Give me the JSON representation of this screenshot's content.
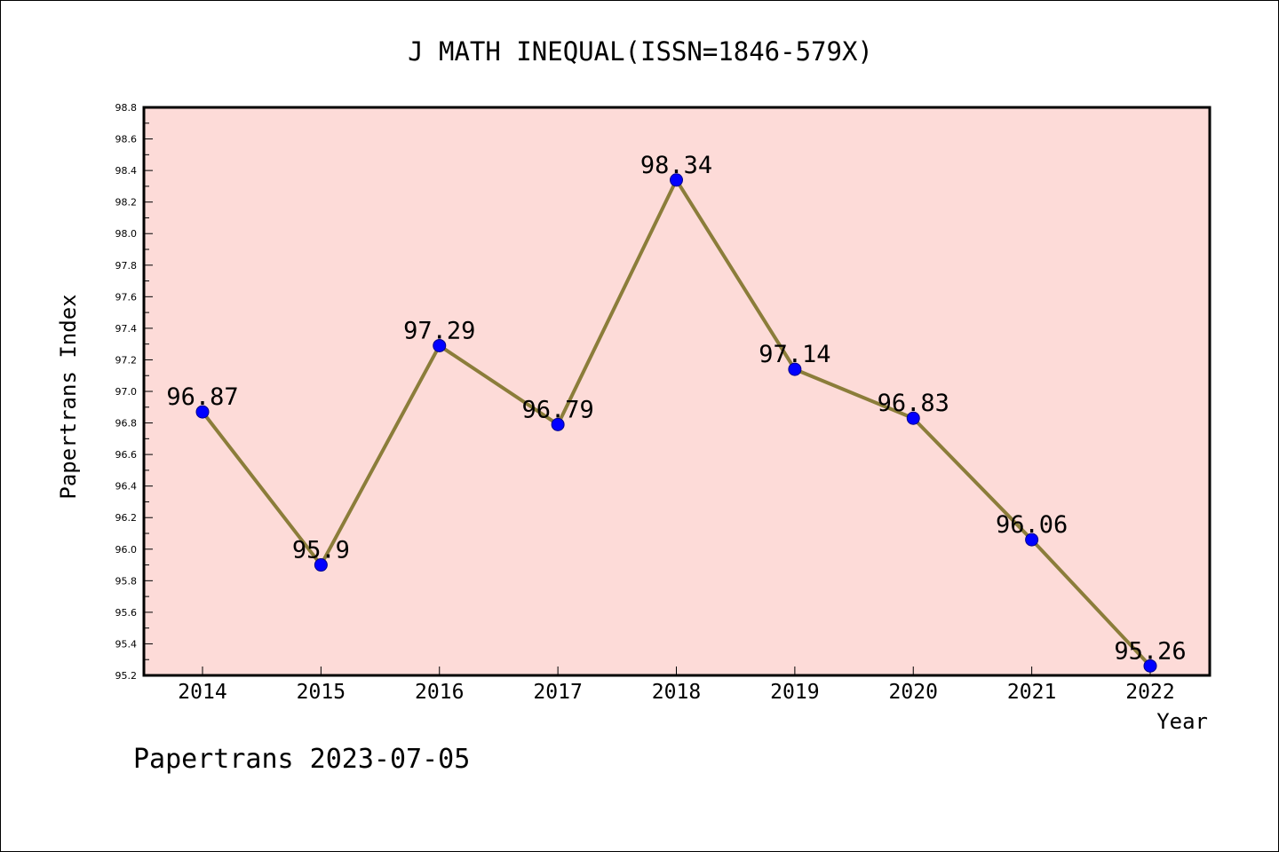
{
  "chart_data": {
    "type": "line",
    "title": "J MATH INEQUAL(ISSN=1846-579X)",
    "xlabel": "Year",
    "ylabel": "Papertrans Index",
    "x": [
      "2014",
      "2015",
      "2016",
      "2017",
      "2018",
      "2019",
      "2020",
      "2021",
      "2022"
    ],
    "values": [
      96.87,
      95.9,
      97.29,
      96.79,
      98.34,
      97.14,
      96.83,
      96.06,
      95.26
    ],
    "data_labels": [
      "96.87",
      "95.9",
      "97.29",
      "96.79",
      "98.34",
      "97.14",
      "96.83",
      "96.06",
      "95.26"
    ],
    "ylim": [
      95.2,
      98.8
    ],
    "yticks": [
      "95.2",
      "95.4",
      "95.6",
      "95.8",
      "96.0",
      "96.2",
      "96.4",
      "96.6",
      "96.8",
      "97.0",
      "97.2",
      "97.4",
      "97.6",
      "97.8",
      "98.0",
      "98.2",
      "98.4",
      "98.6",
      "98.8"
    ],
    "grid": false,
    "colors": {
      "plot_background": "#fddbd8",
      "line": "#8b7d3a",
      "marker": "#0000ff",
      "axis": "#000000"
    }
  },
  "footer": "Papertrans 2023-07-05"
}
